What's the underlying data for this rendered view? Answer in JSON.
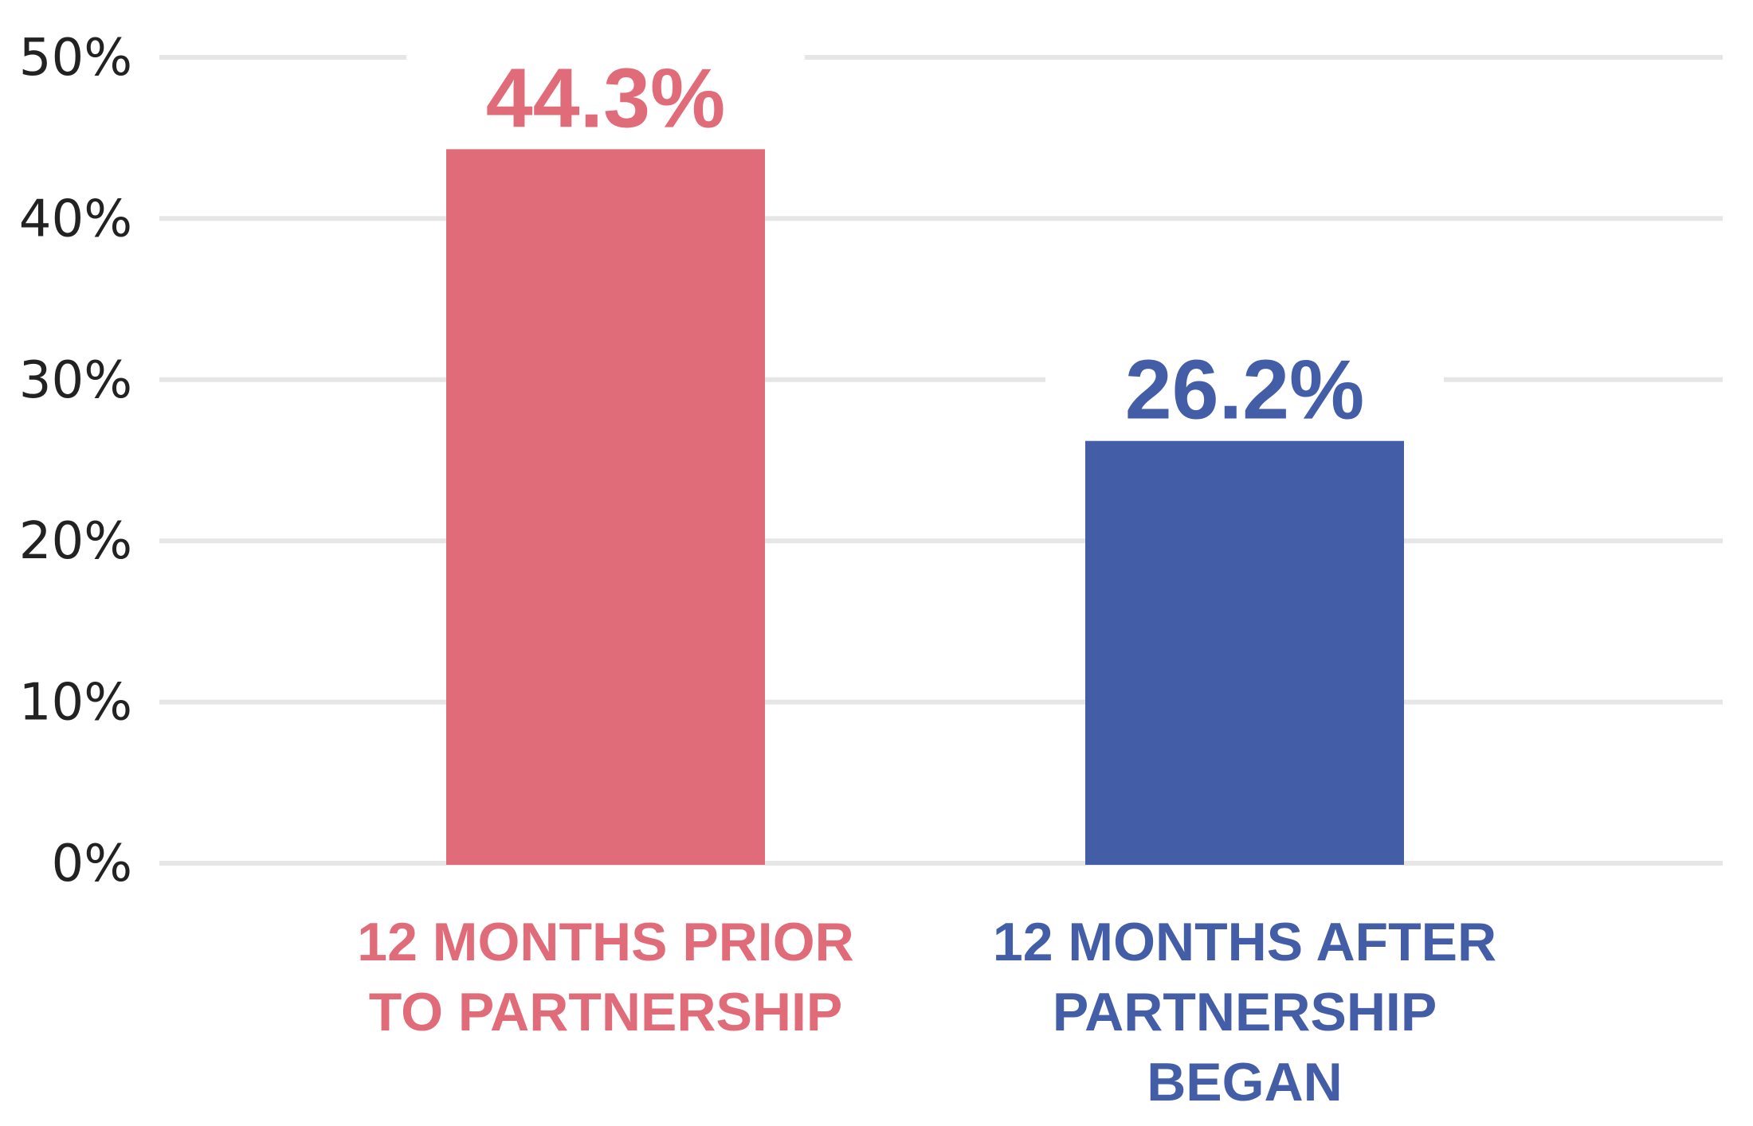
{
  "chart_data": {
    "type": "bar",
    "categories": [
      "12 MONTHS PRIOR TO PARTNERSHIP",
      "12 MONTHS AFTER PARTNERSHIP BEGAN"
    ],
    "category_lines": [
      [
        "12 MONTHS PRIOR",
        "TO PARTNERSHIP"
      ],
      [
        "12 MONTHS AFTER",
        "PARTNERSHIP",
        "BEGAN"
      ]
    ],
    "values": [
      44.3,
      26.2
    ],
    "value_labels": [
      "44.3%",
      "26.2%"
    ],
    "bar_colors": [
      "#e06c7a",
      "#435da6"
    ],
    "ylim": [
      0,
      50
    ],
    "yticks": [
      0,
      10,
      20,
      30,
      40,
      50
    ],
    "ytick_labels": [
      "0%",
      "10%",
      "20%",
      "30%",
      "40%",
      "50%"
    ],
    "grid": true,
    "title": "",
    "xlabel": "",
    "ylabel": ""
  }
}
